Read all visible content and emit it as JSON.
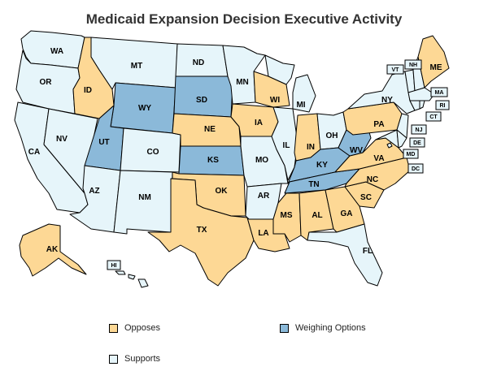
{
  "title": "Medicaid Expansion Decision Executive Activity",
  "colors": {
    "opposes": "#fdd895",
    "weighing": "#8bb9d9",
    "supports": "#e6f5fa",
    "border": "#000000"
  },
  "legend": [
    {
      "key": "opposes",
      "label": "Opposes"
    },
    {
      "key": "weighing",
      "label": "Weighing Options"
    },
    {
      "key": "supports",
      "label": "Supports"
    }
  ],
  "states": {
    "WA": "supports",
    "OR": "supports",
    "CA": "supports",
    "NV": "supports",
    "ID": "opposes",
    "MT": "supports",
    "WY": "weighing",
    "UT": "weighing",
    "AZ": "supports",
    "CO": "supports",
    "NM": "supports",
    "ND": "supports",
    "SD": "weighing",
    "NE": "opposes",
    "KS": "weighing",
    "OK": "opposes",
    "TX": "opposes",
    "MN": "supports",
    "IA": "opposes",
    "MO": "supports",
    "AR": "supports",
    "LA": "opposes",
    "WI": "opposes",
    "IL": "supports",
    "MI": "supports",
    "IN": "opposes",
    "OH": "supports",
    "KY": "weighing",
    "TN": "weighing",
    "MS": "opposes",
    "AL": "opposes",
    "GA": "opposes",
    "FL": "supports",
    "SC": "opposes",
    "NC": "opposes",
    "VA": "opposes",
    "WV": "weighing",
    "PA": "opposes",
    "NY": "supports",
    "ME": "opposes",
    "VT": "supports",
    "NH": "supports",
    "MA": "supports",
    "RI": "supports",
    "CT": "supports",
    "NJ": "supports",
    "DE": "supports",
    "MD": "supports",
    "DC": "supports",
    "AK": "opposes",
    "HI": "supports"
  },
  "labels": {
    "WA": "WA",
    "OR": "OR",
    "CA": "CA",
    "NV": "NV",
    "ID": "ID",
    "MT": "MT",
    "WY": "WY",
    "UT": "UT",
    "AZ": "AZ",
    "CO": "CO",
    "NM": "NM",
    "ND": "ND",
    "SD": "SD",
    "NE": "NE",
    "KS": "KS",
    "OK": "OK",
    "TX": "TX",
    "MN": "MN",
    "IA": "IA",
    "MO": "MO",
    "AR": "AR",
    "LA": "LA",
    "WI": "WI",
    "IL": "IL",
    "MI": "MI",
    "IN": "IN",
    "OH": "OH",
    "KY": "KY",
    "TN": "TN",
    "MS": "MS",
    "AL": "AL",
    "GA": "GA",
    "FL": "FL",
    "SC": "SC",
    "NC": "NC",
    "VA": "VA",
    "WV": "WV",
    "PA": "PA",
    "NY": "NY",
    "ME": "ME",
    "AK": "AK",
    "VT": "VT",
    "NH": "NH",
    "MA": "MA",
    "RI": "RI",
    "CT": "CT",
    "NJ": "NJ",
    "DE": "DE",
    "MD": "MD",
    "DC": "DC",
    "HI": "HI"
  }
}
